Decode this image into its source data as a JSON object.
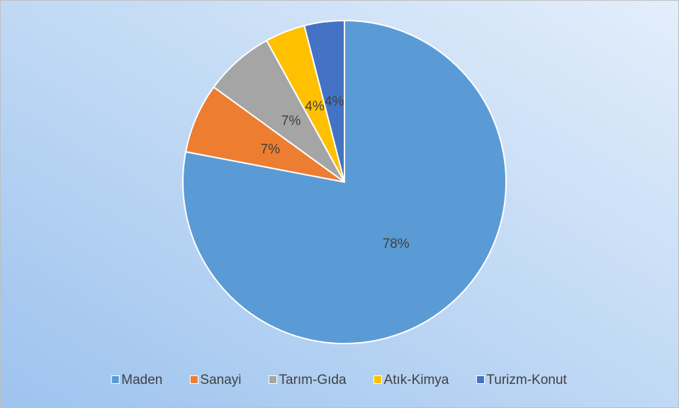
{
  "chart_data": {
    "type": "pie",
    "categories": [
      "Maden",
      "Sanayi",
      "Tarım-Gıda",
      "Atık-Kimya",
      "Turizm-Konut"
    ],
    "values": [
      78,
      7,
      7,
      4,
      4
    ],
    "value_labels": [
      "78%",
      "7%",
      "7%",
      "4%",
      "4%"
    ],
    "colors": [
      "#5b9bd5",
      "#ed7d31",
      "#a5a5a5",
      "#ffc000",
      "#4472c4"
    ],
    "legend": "bottom"
  }
}
